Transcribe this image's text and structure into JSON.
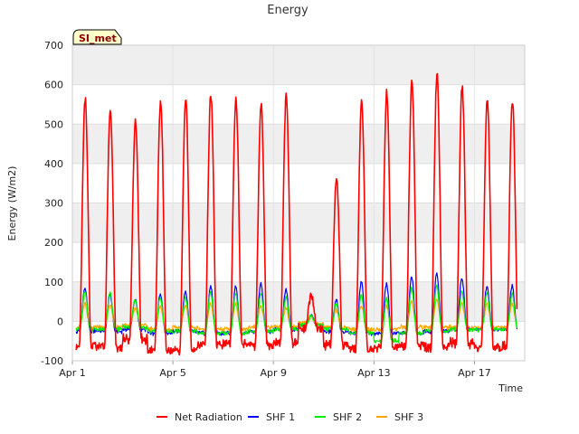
{
  "chart_data": {
    "type": "line",
    "title": "Energy",
    "xlabel": "Time",
    "ylabel": "Energy (W/m2)",
    "badge": "SI_met",
    "ylim": [
      -100,
      700
    ],
    "yticks": [
      -100,
      0,
      100,
      200,
      300,
      400,
      500,
      600,
      700
    ],
    "xlim_days": [
      0,
      18
    ],
    "xticks": [
      {
        "day": 0,
        "label": "Apr 1"
      },
      {
        "day": 4,
        "label": "Apr 5"
      },
      {
        "day": 8,
        "label": "Apr 9"
      },
      {
        "day": 12,
        "label": "Apr 13"
      },
      {
        "day": 16,
        "label": "Apr 17"
      }
    ],
    "grid": true,
    "legend_position": "bottom",
    "series": [
      {
        "name": "Net Radiation",
        "color": "#ff0000",
        "daily_peak": [
          565,
          540,
          505,
          560,
          565,
          575,
          565,
          550,
          575,
          65,
          365,
          555,
          580,
          610,
          625,
          595,
          560
        ],
        "night_low": [
          -65,
          -65,
          -45,
          -75,
          -75,
          -60,
          -55,
          -60,
          -55,
          -20,
          -60,
          -70,
          -65,
          -60,
          -65,
          -55,
          -65
        ]
      },
      {
        "name": "SHF 1",
        "color": "#0000ff",
        "daily_peak": [
          85,
          70,
          55,
          70,
          75,
          90,
          90,
          95,
          80,
          15,
          55,
          100,
          95,
          115,
          120,
          110,
          90
        ],
        "night_low": [
          -25,
          -25,
          -20,
          -30,
          -25,
          -30,
          -30,
          -25,
          -20,
          -10,
          -25,
          -30,
          -30,
          -30,
          -25,
          -20,
          -20
        ]
      },
      {
        "name": "SHF 2",
        "color": "#00ee00",
        "daily_peak": [
          75,
          75,
          55,
          60,
          60,
          75,
          70,
          70,
          60,
          15,
          45,
          65,
          60,
          85,
          90,
          75,
          70
        ],
        "night_low": [
          -20,
          -20,
          -15,
          -25,
          -25,
          -30,
          -30,
          -25,
          -20,
          -10,
          -20,
          -30,
          -50,
          -30,
          -25,
          -20,
          -20
        ]
      },
      {
        "name": "SHF 3",
        "color": "#ffa500",
        "daily_peak": [
          45,
          40,
          35,
          40,
          40,
          45,
          45,
          40,
          35,
          10,
          30,
          40,
          40,
          50,
          55,
          45,
          45
        ],
        "night_low": [
          -15,
          -15,
          -10,
          -20,
          -15,
          -20,
          -20,
          -15,
          -15,
          -5,
          -15,
          -20,
          -20,
          -15,
          -15,
          -15,
          -15
        ]
      }
    ]
  }
}
